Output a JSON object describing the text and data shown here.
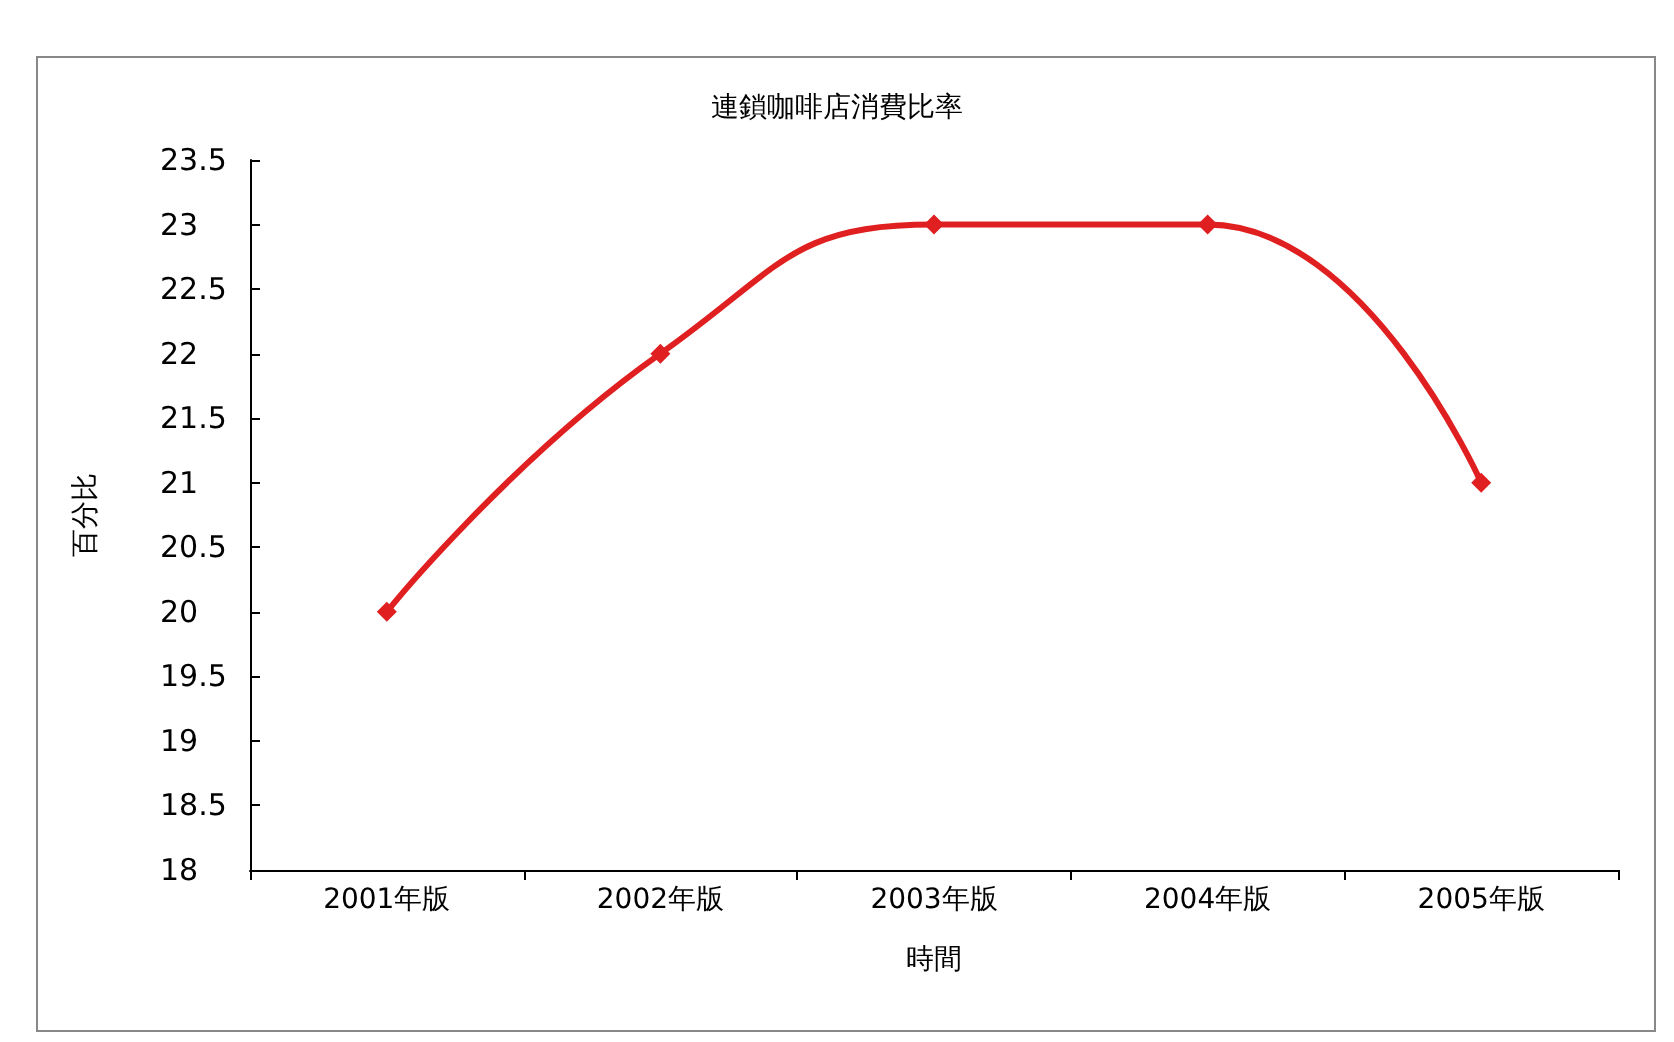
{
  "chart_data": {
    "type": "line",
    "title": "連鎖咖啡店消費比率",
    "xlabel": "時間",
    "ylabel": "百分比",
    "categories": [
      "2001年版",
      "2002年版",
      "2003年版",
      "2004年版",
      "2005年版"
    ],
    "series": [
      {
        "color": "#e02020",
        "values": [
          20,
          22,
          23,
          23,
          21
        ]
      }
    ],
    "ylim": [
      18,
      23.5
    ],
    "yticks": [
      18,
      18.5,
      19,
      19.5,
      20,
      20.5,
      21,
      21.5,
      22,
      22.5,
      23,
      23.5
    ],
    "grid": false,
    "marker": "diamond",
    "line_style": "solid"
  }
}
